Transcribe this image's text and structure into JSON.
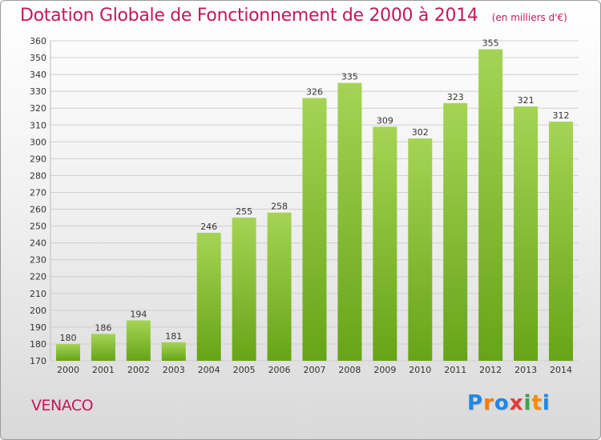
{
  "chart_data": {
    "type": "bar",
    "title": "Dotation Globale de Fonctionnement de 2000 à 2014",
    "subtitle": "(en milliers d'€)",
    "categories": [
      "2000",
      "2001",
      "2002",
      "2003",
      "2004",
      "2005",
      "2006",
      "2007",
      "2008",
      "2009",
      "2010",
      "2011",
      "2012",
      "2013",
      "2014"
    ],
    "values": [
      180,
      186,
      194,
      181,
      246,
      255,
      258,
      326,
      335,
      309,
      302,
      323,
      355,
      321,
      312
    ],
    "ylim": [
      170,
      360
    ],
    "ytick_step": 10,
    "grid": true,
    "xlabel": "",
    "ylabel": "",
    "colors": {
      "bar_top": "#a5d455",
      "bar_bottom": "#67a417",
      "grid": "#cfcfcf",
      "axis_text": "#333333",
      "title": "#c2185b"
    }
  },
  "commune": "VENACO",
  "logo": {
    "letters": [
      {
        "ch": "P",
        "color": "#1e88e5"
      },
      {
        "ch": "r",
        "color": "#f57c00"
      },
      {
        "ch": "o",
        "color": "#1e88e5"
      },
      {
        "ch": "x",
        "color": "#e53935"
      },
      {
        "ch": "i",
        "color": "#43a047"
      },
      {
        "ch": "t",
        "color": "#fb8c00"
      },
      {
        "ch": "i",
        "color": "#1e88e5"
      }
    ]
  }
}
